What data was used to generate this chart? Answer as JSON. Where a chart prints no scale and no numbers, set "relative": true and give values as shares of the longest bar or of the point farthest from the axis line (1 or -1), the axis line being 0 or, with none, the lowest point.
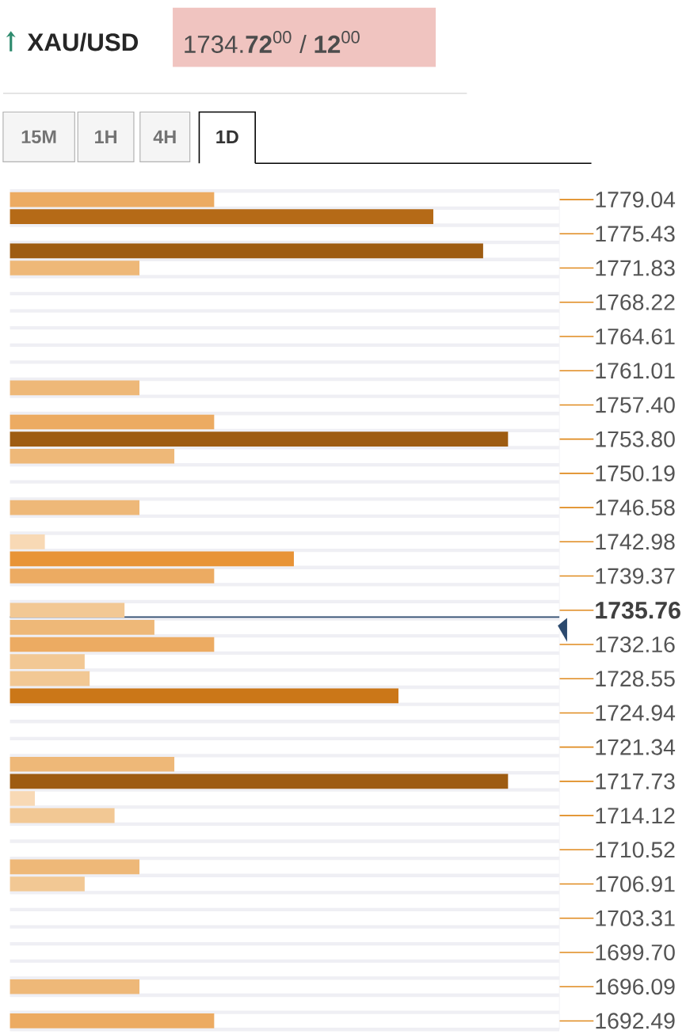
{
  "chart_data": {
    "type": "bar",
    "orientation": "horizontal",
    "relative": true,
    "title": "XAU/USD",
    "subtitle": "1734.**72**$^{00}$ / **12**$^{00}$",
    "annotations": [
      "15M",
      "1H",
      "4H",
      "1D"
    ],
    "categories": [
      "1779.04",
      null,
      "1775.43",
      null,
      "1771.83",
      null,
      "1768.22",
      null,
      "1764.61",
      null,
      "1761.01",
      null,
      "1757.40",
      null,
      "1753.80",
      null,
      "1750.19",
      null,
      "1746.58",
      null,
      "1742.98",
      null,
      "1739.37",
      null,
      "1735.76",
      null,
      "1732.16",
      null,
      "1728.55",
      null,
      "1724.94",
      null,
      "1721.34",
      null,
      "1717.73",
      null,
      "1714.12",
      null,
      "1710.52",
      null,
      "1706.91",
      null,
      "1703.31",
      null,
      "1699.70",
      null,
      "1696.09",
      null,
      "1692.49"
    ],
    "values": [
      0.41,
      0.85,
      null,
      0.95,
      0.26,
      null,
      null,
      null,
      null,
      null,
      null,
      0.26,
      null,
      0.41,
      1.0,
      0.33,
      null,
      null,
      0.26,
      null,
      0.07,
      0.57,
      0.41,
      null,
      0.23,
      0.29,
      0.41,
      0.15,
      0.16,
      0.78,
      null,
      null,
      null,
      0.33,
      1.0,
      0.05,
      0.21,
      null,
      null,
      0.26,
      0.15,
      null,
      null,
      null,
      null,
      null,
      0.26,
      null,
      0.41
    ],
    "colors": [
      "#ecab62",
      "#b56a17",
      null,
      "#9e5c12",
      "#eeb878",
      null,
      null,
      null,
      null,
      null,
      null,
      "#eeb878",
      null,
      "#ecab62",
      "#9e5c12",
      "#eeb878",
      null,
      null,
      "#eeb878",
      null,
      "#f8d9b5",
      "#e89437",
      "#ecab62",
      null,
      "#f2c894",
      "#eeb878",
      "#ecab62",
      "#f2c894",
      "#f2c894",
      "#cb7718",
      null,
      null,
      null,
      "#eeb878",
      "#9e5c12",
      "#f8d9b5",
      "#f2c894",
      null,
      null,
      "#eeb878",
      "#f2c894",
      null,
      null,
      null,
      null,
      null,
      "#eeb878",
      null,
      "#ecab62"
    ],
    "ref_lines": [
      {
        "axis": "y",
        "value": "1735.76",
        "color": "#2c4a6e"
      }
    ],
    "grid": "y"
  }
}
